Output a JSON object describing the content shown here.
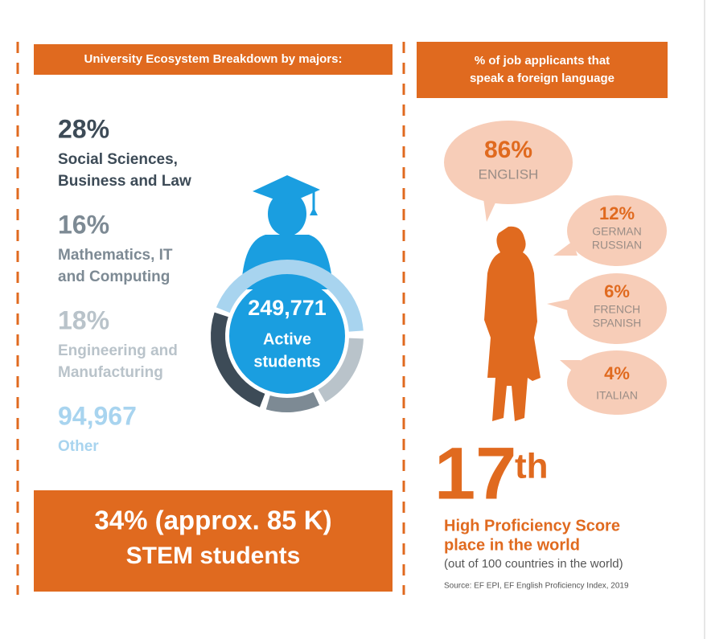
{
  "left": {
    "header": "University Ecosystem Breakdown by majors:",
    "majors": [
      {
        "value": "28%",
        "label": [
          "Social Sciences,",
          "Business and Law"
        ]
      },
      {
        "value": "16%",
        "label": [
          "Mathematics, IT",
          "and Computing"
        ]
      },
      {
        "value": "18%",
        "label": [
          "Engineering and",
          "Manufacturing"
        ]
      },
      {
        "value": "94,967",
        "label": [
          "Other"
        ]
      }
    ],
    "center": {
      "value": "249,771",
      "label": [
        "Active",
        "students"
      ]
    },
    "stem": [
      "34% (approx. 85 K)",
      "STEM students"
    ]
  },
  "right": {
    "header": [
      "% of job applicants that",
      "speak a foreign language"
    ],
    "bubbles": [
      {
        "value": "86%",
        "labels": [
          "ENGLISH"
        ]
      },
      {
        "value": "12%",
        "labels": [
          "GERMAN",
          "RUSSIAN"
        ]
      },
      {
        "value": "6%",
        "labels": [
          "FRENCH",
          "SPANISH"
        ]
      },
      {
        "value": "4%",
        "labels": [
          "ITALIAN"
        ]
      }
    ],
    "rank": {
      "number": "17",
      "suffix": "th"
    },
    "score": [
      "High Proficiency Score",
      "place in the world"
    ],
    "note": "(out of 100 countries in the world)",
    "source": "Source: EF EPI, EF English Proficiency Index, 2019"
  }
}
